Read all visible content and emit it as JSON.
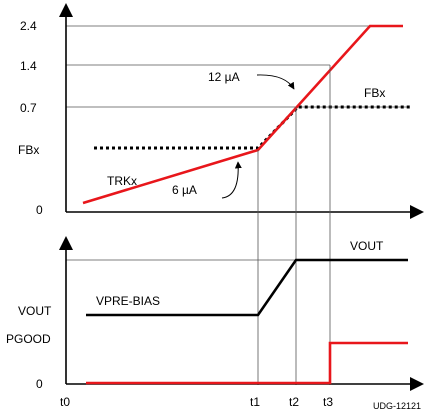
{
  "top_panel": {
    "y_ticks": {
      "v2_4": "2.4",
      "v1_4": "1.4",
      "v0_7": "0.7",
      "fbx": "FBx",
      "zero": "0"
    },
    "labels": {
      "current_12": "12 µA",
      "current_6": "6 µA",
      "fbx_signal": "FBx",
      "trkx_signal": "TRKx"
    }
  },
  "bottom_panel": {
    "y_labels": {
      "vout": "VOUT",
      "pgood": "PGOOD",
      "zero": "0"
    },
    "labels": {
      "vout_signal": "VOUT",
      "vpre_bias": "VPRE-BIAS"
    },
    "x_labels": {
      "t0": "t0",
      "t1": "t1",
      "t2": "t2",
      "t3": "t3"
    }
  },
  "figure_id": "UDG-12121",
  "colors": {
    "trace_red": "#e8161b",
    "trace_black": "#000000",
    "guide": "#555555"
  }
}
